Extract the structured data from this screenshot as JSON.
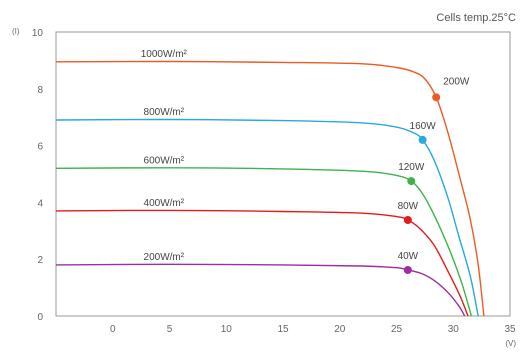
{
  "chart_data": {
    "type": "line",
    "note": "Cells temp.25°C",
    "ylabel": "(I)",
    "xlabel": "(V)",
    "xlim": [
      -5,
      35
    ],
    "ylim": [
      0,
      10
    ],
    "xticks": [
      0,
      5,
      10,
      15,
      20,
      25,
      30,
      35
    ],
    "yticks": [
      0,
      2,
      4,
      6,
      8,
      10
    ],
    "grid": false,
    "series": [
      {
        "name": "1000W/m²",
        "color": "#ee5a24",
        "points": [
          [
            -5,
            8.95
          ],
          [
            5,
            8.96
          ],
          [
            15,
            8.93
          ],
          [
            22,
            8.88
          ],
          [
            25,
            8.75
          ],
          [
            26.5,
            8.6
          ],
          [
            27.5,
            8.35
          ],
          [
            28.5,
            7.7
          ],
          [
            29.5,
            6.5
          ],
          [
            30.5,
            5.0
          ],
          [
            31.5,
            3.4
          ],
          [
            32.2,
            1.8
          ],
          [
            32.7,
            0
          ]
        ],
        "mpp": {
          "x": 28.5,
          "y": 7.7,
          "label": "200W"
        }
      },
      {
        "name": "800W/m²",
        "color": "#27a9e1",
        "points": [
          [
            -5,
            6.9
          ],
          [
            5,
            6.92
          ],
          [
            15,
            6.88
          ],
          [
            22,
            6.8
          ],
          [
            25,
            6.65
          ],
          [
            26.5,
            6.45
          ],
          [
            27.3,
            6.2
          ],
          [
            28.3,
            5.5
          ],
          [
            29.5,
            4.2
          ],
          [
            30.5,
            2.8
          ],
          [
            31.5,
            1.4
          ],
          [
            32.2,
            0
          ]
        ],
        "mpp": {
          "x": 27.3,
          "y": 6.2,
          "label": "160W"
        }
      },
      {
        "name": "600W/m²",
        "color": "#3cb44b",
        "points": [
          [
            -5,
            5.2
          ],
          [
            5,
            5.22
          ],
          [
            15,
            5.18
          ],
          [
            22,
            5.1
          ],
          [
            25,
            4.95
          ],
          [
            26.3,
            4.75
          ],
          [
            27.3,
            4.3
          ],
          [
            28.5,
            3.4
          ],
          [
            29.8,
            2.2
          ],
          [
            30.8,
            1.1
          ],
          [
            31.6,
            0
          ]
        ],
        "mpp": {
          "x": 26.3,
          "y": 4.75,
          "label": "120W"
        }
      },
      {
        "name": "400W/m²",
        "color": "#e6191b",
        "points": [
          [
            -5,
            3.7
          ],
          [
            5,
            3.72
          ],
          [
            15,
            3.68
          ],
          [
            22,
            3.62
          ],
          [
            25,
            3.5
          ],
          [
            26.0,
            3.38
          ],
          [
            27.0,
            3.1
          ],
          [
            28.3,
            2.5
          ],
          [
            29.5,
            1.6
          ],
          [
            30.6,
            0.7
          ],
          [
            31.3,
            0
          ]
        ],
        "mpp": {
          "x": 26.0,
          "y": 3.38,
          "label": "80W"
        }
      },
      {
        "name": "200W/m²",
        "color": "#9b2ea0",
        "points": [
          [
            -5,
            1.8
          ],
          [
            5,
            1.82
          ],
          [
            15,
            1.8
          ],
          [
            22,
            1.76
          ],
          [
            25,
            1.7
          ],
          [
            26.0,
            1.62
          ],
          [
            27.3,
            1.48
          ],
          [
            28.5,
            1.2
          ],
          [
            29.6,
            0.8
          ],
          [
            30.5,
            0.35
          ],
          [
            31.0,
            0
          ]
        ],
        "mpp": {
          "x": 26.0,
          "y": 1.62,
          "label": "40W"
        }
      }
    ]
  }
}
